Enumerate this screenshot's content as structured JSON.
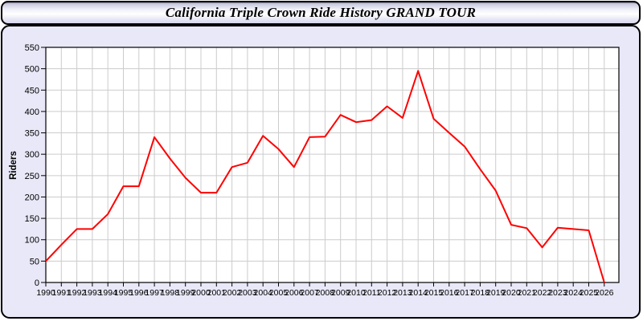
{
  "window": {
    "title": "California Triple Crown Ride History GRAND TOUR"
  },
  "colors": {
    "line": "#FF0000",
    "panel_bg": "#E8E8F8",
    "plot_bg": "#FFFFFF",
    "grid": "#CCCCCC",
    "axis": "#000000"
  },
  "chart_data": {
    "type": "line",
    "title": "California Triple Crown Ride History GRAND TOUR",
    "xlabel": "",
    "ylabel": "Riders",
    "x": [
      1990,
      1991,
      1992,
      1993,
      1994,
      1995,
      1996,
      1997,
      1998,
      1999,
      2000,
      2001,
      2002,
      2003,
      2004,
      2005,
      2006,
      2007,
      2008,
      2009,
      2010,
      2011,
      2012,
      2013,
      2014,
      2015,
      2016,
      2017,
      2018,
      2019,
      2020,
      2021,
      2022,
      2023,
      2024,
      2025,
      2026
    ],
    "series": [
      {
        "name": "Riders",
        "color": "#FF0000",
        "values": [
          50,
          88,
          125,
          125,
          160,
          225,
          225,
          340,
          290,
          245,
          210,
          210,
          270,
          280,
          343,
          312,
          270,
          340,
          341,
          392,
          375,
          380,
          412,
          385,
          495,
          383,
          350,
          318,
          265,
          215,
          135,
          127,
          82,
          128,
          125,
          122,
          0
        ]
      }
    ],
    "ylim": [
      0,
      550
    ],
    "ytick_step": 50,
    "grid": true,
    "legend": "none"
  }
}
